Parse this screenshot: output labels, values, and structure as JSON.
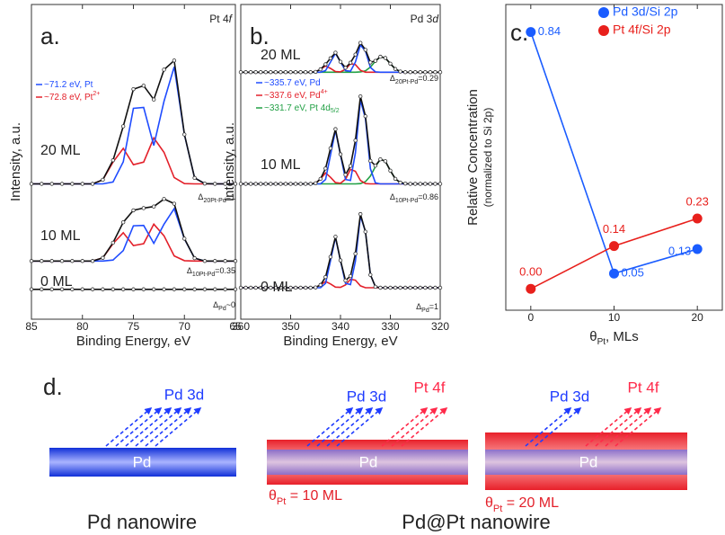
{
  "chart_data": [
    {
      "type": "spectra",
      "panel_label": "a.",
      "title": "Pt 4",
      "title_italic": "f",
      "y_label": "Intensity, a.u.",
      "x_label": "Binding Energy, eV",
      "x": [
        85,
        84,
        83,
        82,
        81,
        80,
        79,
        78,
        77,
        76,
        75,
        74,
        73,
        72,
        71,
        70,
        69,
        68,
        67,
        66,
        65
      ],
      "xlim": [
        85,
        65
      ],
      "xticks": [
        85,
        80,
        75,
        70,
        65
      ],
      "ylim": [
        0,
        100
      ],
      "legend": [
        {
          "text": "~71.2 eV, Pt",
          "color": "#1f4cff"
        },
        {
          "text": "~72.8 eV, Pt",
          "sup": "2+",
          "color": "#e3202a"
        }
      ],
      "spectra": [
        {
          "label": "20 ML",
          "color": "#111111",
          "values": [
            43,
            43,
            43,
            43,
            43,
            43,
            43,
            44.3,
            50.5,
            61.3,
            73.1,
            74.2,
            69.8,
            79.3,
            82.2,
            58.7,
            44.9,
            43.1,
            43,
            43,
            43
          ],
          "components": [
            {
              "color": "#e3202a",
              "values": [
                43,
                43,
                43,
                43,
                43,
                43,
                43,
                44.3,
                49.9,
                54.3,
                49.1,
                49.9,
                57.6,
                53,
                45,
                43.1,
                43,
                43,
                43,
                43,
                43
              ]
            },
            {
              "color": "#1f4cff",
              "values": [
                43,
                43,
                43,
                43,
                43,
                43,
                43,
                43,
                43.6,
                50,
                67,
                67.3,
                55.2,
                69.3,
                80.2,
                58.6,
                44.9,
                43.1,
                43,
                43,
                43
              ]
            }
          ],
          "delta": {
            "symbol": "Δ",
            "sub": "20Pt-Pd",
            "text": "=1"
          }
        },
        {
          "label": "10 ML",
          "color": "#111111",
          "values": [
            18.5,
            18.5,
            18.5,
            18.5,
            18.5,
            18.5,
            18.5,
            19.5,
            24.3,
            30.8,
            34.6,
            35.3,
            35.8,
            38.2,
            36.7,
            25.6,
            19.4,
            18.5,
            18.5,
            18.5,
            18.5
          ],
          "components": [
            {
              "color": "#e3202a",
              "values": [
                18.5,
                18.5,
                18.5,
                18.5,
                18.5,
                18.5,
                18.5,
                19.5,
                24,
                27.5,
                23.4,
                24,
                30.2,
                26.5,
                20.1,
                18.6,
                18.5,
                18.5,
                18.5,
                18.5,
                18.5
              ]
            },
            {
              "color": "#1f4cff",
              "values": [
                18.5,
                18.5,
                18.5,
                18.5,
                18.5,
                18.5,
                18.5,
                18.5,
                18.8,
                21.8,
                29.7,
                29.8,
                24.1,
                30.2,
                35.1,
                25.5,
                19.4,
                18.5,
                18.5,
                18.5,
                18.5
              ]
            }
          ],
          "delta": {
            "symbol": "Δ",
            "sub": "10Pt-Pd",
            "text": "=0.35"
          }
        },
        {
          "label": "0 ML",
          "color": "#111111",
          "values": [
            9.5,
            9.5,
            9.5,
            9.5,
            9.5,
            9.5,
            9.5,
            9.5,
            9.5,
            9.5,
            9.5,
            9.5,
            9.5,
            9.5,
            9.5,
            9.5,
            9.5,
            9.5,
            9.5,
            9.5,
            9.5
          ],
          "components": [],
          "delta": {
            "symbol": "Δ",
            "sub": "Pd",
            "text": "~0"
          }
        }
      ]
    },
    {
      "type": "spectra",
      "panel_label": "b.",
      "title": "Pd 3",
      "title_italic": "d",
      "y_label": "Intensity, a.u.",
      "x_label": "Binding Energy, eV",
      "x": [
        360,
        359,
        358,
        357,
        356,
        355,
        354,
        353,
        352,
        351,
        350,
        349,
        348,
        347,
        346,
        345,
        344,
        343,
        342,
        341,
        340,
        339,
        338,
        337,
        336,
        335,
        334,
        333,
        332,
        331,
        330,
        329,
        328,
        327,
        326,
        325,
        324,
        323,
        322,
        321,
        320
      ],
      "xlim": [
        360,
        320
      ],
      "xticks": [
        360,
        350,
        340,
        330,
        320
      ],
      "ylim": [
        0,
        100
      ],
      "legend": [
        {
          "text": "~335.7 eV, Pd",
          "color": "#1f4cff"
        },
        {
          "text": "~337.6 eV, Pd",
          "sup": "4+",
          "color": "#e3202a"
        },
        {
          "text": "~331.7 eV, Pt 4d",
          "sub": "5/2",
          "color": "#22a045"
        }
      ],
      "spectra": [
        {
          "label": "20 ML",
          "color": "#111111",
          "values": [
            78.5,
            78.5,
            78.5,
            78.5,
            78.5,
            78.5,
            78.5,
            78.5,
            78.5,
            78.5,
            78.5,
            78.5,
            78.5,
            78.5,
            78.5,
            78.6,
            79.4,
            81,
            82.9,
            84.7,
            81.8,
            79.9,
            81.5,
            84.1,
            87.8,
            85.6,
            81.6,
            82.1,
            83.4,
            83,
            81.2,
            79.5,
            78.7,
            78.5,
            78.5,
            78.5,
            78.5,
            78.5,
            78.5,
            78.5,
            78.5
          ],
          "components": [
            {
              "color": "#22a045",
              "values": [
                78.5,
                78.5,
                78.5,
                78.5,
                78.5,
                78.5,
                78.5,
                78.5,
                78.5,
                78.5,
                78.5,
                78.5,
                78.5,
                78.5,
                78.5,
                78.5,
                78.5,
                78.5,
                78.5,
                78.5,
                78.5,
                78.5,
                78.5,
                78.5,
                78.6,
                78.9,
                80.1,
                82,
                83.4,
                83,
                81.2,
                79.5,
                78.7,
                78.5,
                78.5,
                78.5,
                78.5,
                78.5,
                78.5,
                78.5,
                78.5
              ]
            },
            {
              "color": "#e3202a",
              "values": [
                78.5,
                78.5,
                78.5,
                78.5,
                78.5,
                78.5,
                78.5,
                78.5,
                78.5,
                78.5,
                78.5,
                78.5,
                78.5,
                78.5,
                78.5,
                78.6,
                79.4,
                80.5,
                79.7,
                78.7,
                78.6,
                79.4,
                81.2,
                80.9,
                79.1,
                78.5,
                78.5,
                78.5,
                78.5,
                78.5,
                78.5,
                78.5,
                78.5,
                78.5,
                78.5,
                78.5,
                78.5,
                78.5,
                78.5,
                78.5,
                78.5
              ]
            },
            {
              "color": "#1f4cff",
              "values": [
                78.5,
                78.5,
                78.5,
                78.5,
                78.5,
                78.5,
                78.5,
                78.5,
                78.5,
                78.5,
                78.5,
                78.5,
                78.5,
                78.5,
                78.5,
                78.5,
                78.5,
                79,
                81.7,
                84.5,
                81.7,
                79,
                78.8,
                81.7,
                87.1,
                85.2,
                80,
                78.6,
                78.5,
                78.5,
                78.5,
                78.5,
                78.5,
                78.5,
                78.5,
                78.5,
                78.5,
                78.5,
                78.5,
                78.5,
                78.5
              ]
            }
          ],
          "delta": {
            "symbol": "Δ",
            "sub": "20Pt-Pd",
            "text": "=0.29"
          }
        },
        {
          "label": "10 ML",
          "color": "#111111",
          "values": [
            43,
            43,
            43,
            43,
            43,
            43,
            43,
            43,
            43,
            43,
            43,
            43,
            43,
            43,
            43,
            43.2,
            44.6,
            47.9,
            54.3,
            60.4,
            52.4,
            45.9,
            48.7,
            56.8,
            70.8,
            64.5,
            50.3,
            48.8,
            50.8,
            50.2,
            47.2,
            44.6,
            43.4,
            43.1,
            43,
            43,
            43,
            43,
            43,
            43,
            43
          ],
          "components": [
            {
              "color": "#22a045",
              "values": [
                43,
                43,
                43,
                43,
                43,
                43,
                43,
                43,
                43,
                43,
                43,
                43,
                43,
                43,
                43,
                43,
                43,
                43,
                43,
                43,
                43,
                43,
                43,
                43,
                43.1,
                43.7,
                45.5,
                48.5,
                50.8,
                50.2,
                47.2,
                44.6,
                43.4,
                43.1,
                43,
                43,
                43,
                43,
                43,
                43,
                43
              ]
            },
            {
              "color": "#e3202a",
              "values": [
                43,
                43,
                43,
                43,
                43,
                43,
                43,
                43,
                43,
                43,
                43,
                43,
                43,
                43,
                43,
                43.2,
                44.6,
                46.5,
                45.1,
                43.4,
                43.2,
                44.5,
                47.6,
                47,
                44.1,
                43.1,
                43,
                43,
                43,
                43,
                43,
                43,
                43,
                43,
                43,
                43,
                43,
                43,
                43,
                43,
                43
              ]
            },
            {
              "color": "#1f4cff",
              "values": [
                43,
                43,
                43,
                43,
                43,
                43,
                43,
                43,
                43,
                43,
                43,
                43,
                43,
                43,
                43,
                43,
                43,
                44.4,
                52.2,
                60,
                52.2,
                44.4,
                44.1,
                52.8,
                69.6,
                63.7,
                47.8,
                43.3,
                43,
                43,
                43,
                43,
                43,
                43,
                43,
                43,
                43,
                43,
                43,
                43,
                43
              ]
            }
          ],
          "delta": {
            "symbol": "Δ",
            "sub": "10Pt-Pd",
            "text": "=0.86"
          }
        },
        {
          "label": "0 ML",
          "color": "#111111",
          "values": [
            10,
            10,
            10,
            10,
            10,
            10,
            10,
            10,
            10,
            10,
            10,
            10,
            10,
            10,
            10,
            10.1,
            10.9,
            13.4,
            19.8,
            26.2,
            18.7,
            12.3,
            13.7,
            20.8,
            33.4,
            27.8,
            14.1,
            10.3,
            10,
            10,
            10,
            10,
            10,
            10,
            10,
            10,
            10,
            10,
            10,
            10,
            10
          ],
          "components": [
            {
              "color": "#e3202a",
              "values": [
                10,
                10,
                10,
                10,
                10,
                10,
                10,
                10,
                10,
                10,
                10,
                10,
                10,
                10,
                10,
                10.1,
                10.9,
                12,
                11.2,
                10.2,
                10.1,
                10.9,
                12.7,
                12.4,
                10.6,
                10,
                10,
                10,
                10,
                10,
                10,
                10,
                10,
                10,
                10,
                10,
                10,
                10,
                10,
                10,
                10
              ]
            },
            {
              "color": "#1f4cff",
              "values": [
                10,
                10,
                10,
                10,
                10,
                10,
                10,
                10,
                10,
                10,
                10,
                10,
                10,
                10,
                10,
                10,
                10,
                11.4,
                18.6,
                26,
                18.6,
                11.4,
                11,
                18.4,
                32.8,
                27.8,
                14.1,
                10.3,
                10,
                10,
                10,
                10,
                10,
                10,
                10,
                10,
                10,
                10,
                10,
                10,
                10
              ]
            }
          ],
          "delta": {
            "symbol": "Δ",
            "sub": "Pd",
            "text": "=1"
          }
        }
      ]
    },
    {
      "type": "line",
      "panel_label": "c.",
      "y_label": "Relative Concentration",
      "y_label_sub": "(normalized to Si 2p)",
      "x_label": "θ",
      "x_label_sub": "Pt",
      "x_label_tail": ", MLs",
      "x": [
        0,
        10,
        20
      ],
      "xlim": [
        -3,
        23
      ],
      "xticks": [
        0,
        10,
        20
      ],
      "ylim": [
        -0.07,
        0.93
      ],
      "legend": "top-right",
      "series": [
        {
          "name": "Pd 3d/Si 2p",
          "color": "#1a5cff",
          "values": [
            0.84,
            0.05,
            0.13
          ]
        },
        {
          "name": "Pt 4f/Si 2p",
          "color": "#e8201c",
          "values": [
            0,
            0.14,
            0.23
          ],
          "value_labels": [
            "0.00",
            "0.14",
            "0.23"
          ]
        }
      ]
    }
  ],
  "diagram": {
    "label": "d.",
    "wires": [
      {
        "core": "Pd",
        "signals": [
          "Pd 3d"
        ],
        "caption": "Pd nanowire"
      },
      {
        "core": "Pd",
        "signals": [
          "Pd 3d",
          "Pt 4f"
        ],
        "coverage": {
          "symbol": "θ",
          "sub": "Pt",
          "text": " = 10 ML"
        }
      },
      {
        "core": "Pd",
        "signals": [
          "Pd 3d",
          "Pt 4f"
        ],
        "coverage": {
          "symbol": "θ",
          "sub": "Pt",
          "text": " = 20 ML"
        }
      }
    ],
    "caption": "Pd@Pt  nanowire"
  }
}
